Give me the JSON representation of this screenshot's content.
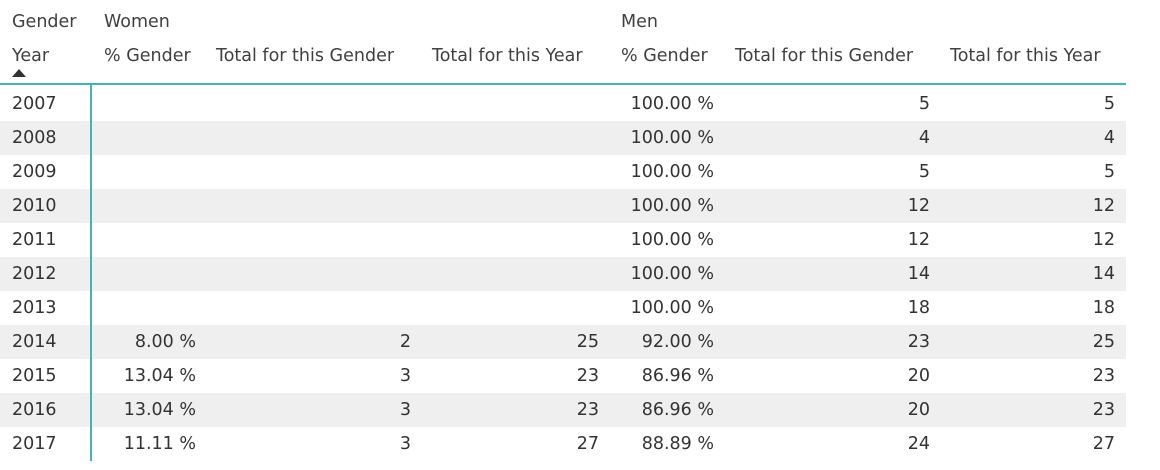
{
  "headers": {
    "gender_label": "Gender",
    "year_label": "Year",
    "women": "Women",
    "men": "Men",
    "pct_gender": "% Gender",
    "total_gender": "Total for this Gender",
    "total_year": "Total for this Year"
  },
  "sort": {
    "column": "Year",
    "direction": "ascending",
    "icon": "sort-ascending-icon"
  },
  "colors": {
    "accent": "#3fb8a8",
    "band": "#efefef"
  },
  "rows": [
    {
      "year": "2007",
      "women_pct": "",
      "women_total_gender": "",
      "women_total_year": "",
      "men_pct": "100.00 %",
      "men_total_gender": "5",
      "men_total_year": "5"
    },
    {
      "year": "2008",
      "women_pct": "",
      "women_total_gender": "",
      "women_total_year": "",
      "men_pct": "100.00 %",
      "men_total_gender": "4",
      "men_total_year": "4"
    },
    {
      "year": "2009",
      "women_pct": "",
      "women_total_gender": "",
      "women_total_year": "",
      "men_pct": "100.00 %",
      "men_total_gender": "5",
      "men_total_year": "5"
    },
    {
      "year": "2010",
      "women_pct": "",
      "women_total_gender": "",
      "women_total_year": "",
      "men_pct": "100.00 %",
      "men_total_gender": "12",
      "men_total_year": "12"
    },
    {
      "year": "2011",
      "women_pct": "",
      "women_total_gender": "",
      "women_total_year": "",
      "men_pct": "100.00 %",
      "men_total_gender": "12",
      "men_total_year": "12"
    },
    {
      "year": "2012",
      "women_pct": "",
      "women_total_gender": "",
      "women_total_year": "",
      "men_pct": "100.00 %",
      "men_total_gender": "14",
      "men_total_year": "14"
    },
    {
      "year": "2013",
      "women_pct": "",
      "women_total_gender": "",
      "women_total_year": "",
      "men_pct": "100.00 %",
      "men_total_gender": "18",
      "men_total_year": "18"
    },
    {
      "year": "2014",
      "women_pct": "8.00 %",
      "women_total_gender": "2",
      "women_total_year": "25",
      "men_pct": "92.00 %",
      "men_total_gender": "23",
      "men_total_year": "25"
    },
    {
      "year": "2015",
      "women_pct": "13.04 %",
      "women_total_gender": "3",
      "women_total_year": "23",
      "men_pct": "86.96 %",
      "men_total_gender": "20",
      "men_total_year": "23"
    },
    {
      "year": "2016",
      "women_pct": "13.04 %",
      "women_total_gender": "3",
      "women_total_year": "23",
      "men_pct": "86.96 %",
      "men_total_gender": "20",
      "men_total_year": "23"
    },
    {
      "year": "2017",
      "women_pct": "11.11 %",
      "women_total_gender": "3",
      "women_total_year": "27",
      "men_pct": "88.89 %",
      "men_total_gender": "24",
      "men_total_year": "27"
    }
  ]
}
